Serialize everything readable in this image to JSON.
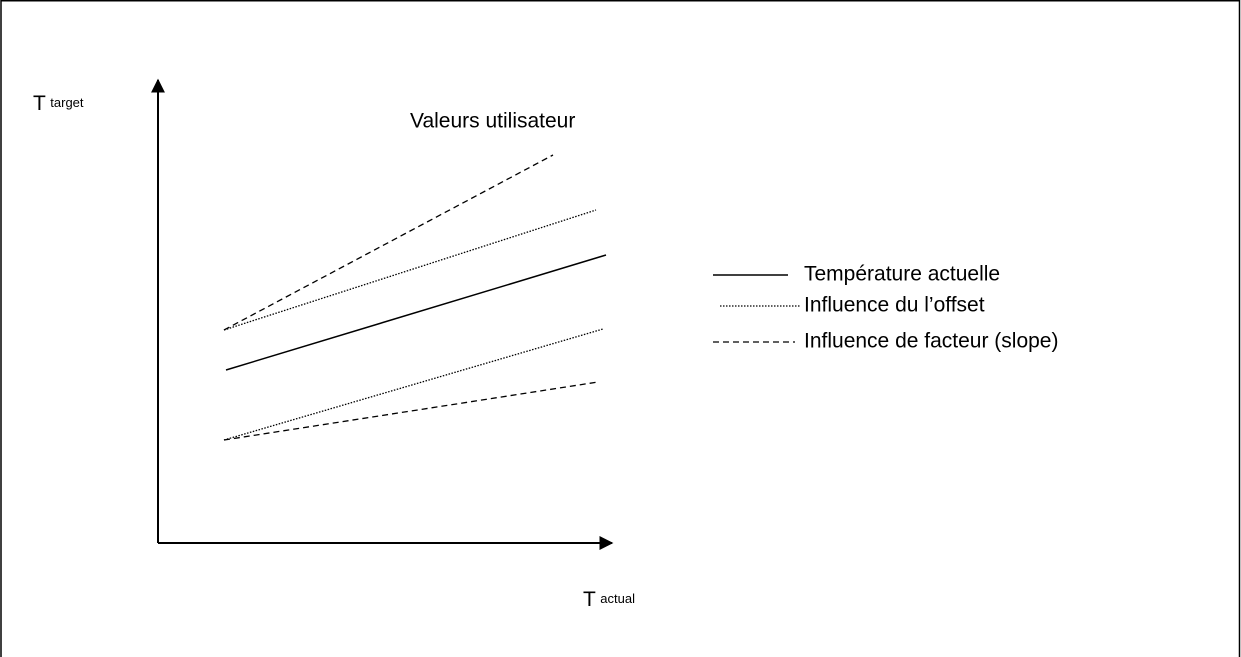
{
  "diagram": {
    "y_axis_label": {
      "main": "T",
      "sub": "target"
    },
    "x_axis_label": {
      "main": "T",
      "sub": "actual"
    },
    "title": "Valeurs utilisateur",
    "legend": [
      "Température actuelle",
      "Influence du l’offset",
      "Influence de facteur (slope)"
    ]
  }
}
